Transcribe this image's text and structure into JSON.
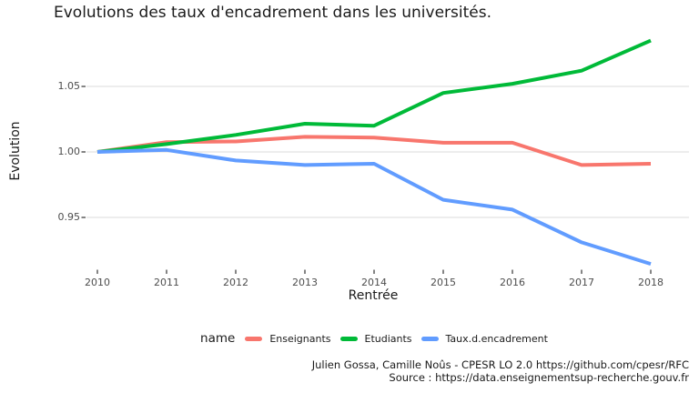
{
  "title": "Evolutions des taux d'encadrement dans les universités.",
  "chart_data": {
    "type": "line",
    "title": "Evolutions des taux d'encadrement dans les universités.",
    "xlabel": "Rentrée",
    "ylabel": "Evolution",
    "x": [
      2010,
      2011,
      2012,
      2013,
      2014,
      2015,
      2016,
      2017,
      2018
    ],
    "series": [
      {
        "name": "Enseignants",
        "color": "#F8766D",
        "values": [
          1.0,
          1.0075,
          1.008,
          1.0115,
          1.011,
          1.007,
          1.007,
          0.99,
          0.991
        ]
      },
      {
        "name": "Etudiants",
        "color": "#00BA38",
        "values": [
          1.0,
          1.006,
          1.013,
          1.0215,
          1.02,
          1.045,
          1.052,
          1.062,
          1.085
        ]
      },
      {
        "name": "Taux.d.encadrement",
        "color": "#619CFF",
        "values": [
          1.0,
          1.0015,
          0.9935,
          0.99,
          0.991,
          0.9635,
          0.956,
          0.931,
          0.9145
        ]
      }
    ],
    "y_ticks": [
      0.95,
      1.0,
      1.05
    ],
    "y_tick_labels": [
      "0.95",
      "1.00",
      "1.05"
    ],
    "ylim": [
      0.905,
      1.09
    ],
    "grid": "horizontal-major-only",
    "gridline_color": "#E2E2E2",
    "tick_color": "#333333",
    "legend_title": "name",
    "legend_position": "bottom"
  },
  "caption": {
    "line1": "Julien Gossa, Camille Noûs - CPESR LO 2.0 https://github.com/cpesr/RFC",
    "line2": "Source : https://data.enseignementsup-recherche.gouv.fr"
  }
}
